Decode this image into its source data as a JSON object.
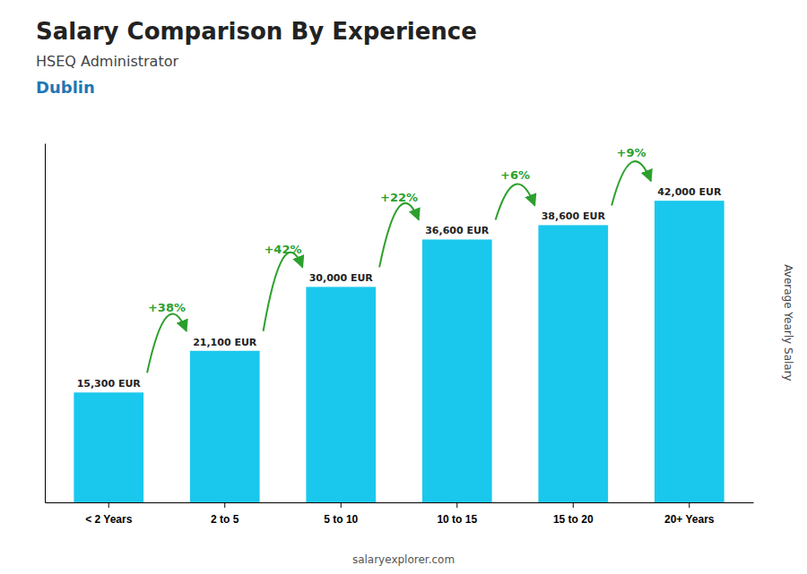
{
  "chart_data": {
    "type": "bar",
    "title": "Salary Comparison By Experience",
    "subtitle": "HSEQ Administrator",
    "annotations": [
      "Dublin",
      "salaryexplorer.com"
    ],
    "categories": [
      "< 2 Years",
      "2 to 5",
      "5 to 10",
      "10 to 15",
      "15 to 20",
      "20+ Years"
    ],
    "values": [
      15300,
      21100,
      30000,
      36600,
      38600,
      42000
    ],
    "value_labels": [
      "15,300 EUR",
      "21,100 EUR",
      "30,000 EUR",
      "36,600 EUR",
      "38,600 EUR",
      "42,000 EUR"
    ],
    "data_labels": true,
    "change_labels": [
      "+38%",
      "+42%",
      "+22%",
      "+6%",
      "+9%"
    ],
    "color": "#1ac8ed",
    "ylabel": "Average Yearly Salary",
    "ylim": [
      0,
      50000
    ],
    "tick_labels": "x",
    "grid": false
  }
}
